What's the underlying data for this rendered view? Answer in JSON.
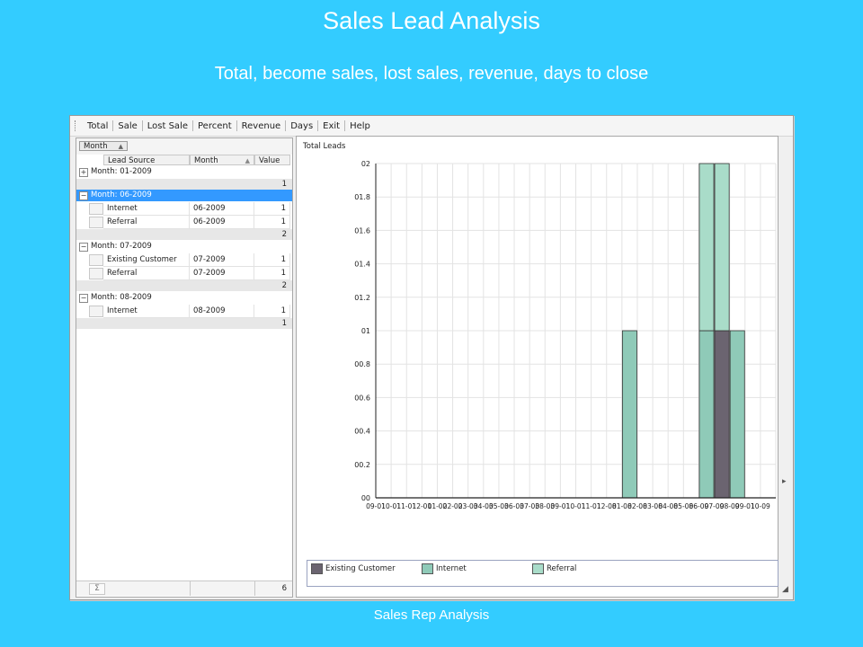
{
  "slide": {
    "title": "Sales Lead Analysis",
    "subtitle": "Total, become sales, lost sales, revenue, days to close",
    "footer": "Sales Rep Analysis"
  },
  "menu": {
    "items": [
      "Total",
      "Sale",
      "Lost Sale",
      "Percent",
      "Revenue",
      "Days",
      "Exit",
      "Help"
    ]
  },
  "grid": {
    "group_chip": "Month",
    "columns": [
      "Lead Source",
      "Month",
      "Value"
    ],
    "groups": [
      {
        "label": "Month:  01-2009",
        "expanded": false,
        "selected": false,
        "rows": [],
        "total": "1"
      },
      {
        "label": "Month:  06-2009",
        "expanded": true,
        "selected": true,
        "rows": [
          {
            "source": "Internet",
            "month": "06-2009",
            "value": "1"
          },
          {
            "source": "Referral",
            "month": "06-2009",
            "value": "1"
          }
        ],
        "total": "2"
      },
      {
        "label": "Month:  07-2009",
        "expanded": true,
        "selected": false,
        "rows": [
          {
            "source": "Existing Customer",
            "month": "07-2009",
            "value": "1"
          },
          {
            "source": "Referral",
            "month": "07-2009",
            "value": "1"
          }
        ],
        "total": "2"
      },
      {
        "label": "Month:  08-2009",
        "expanded": true,
        "selected": false,
        "rows": [
          {
            "source": "Internet",
            "month": "08-2009",
            "value": "1"
          }
        ],
        "total": "1"
      }
    ],
    "expand_symbol": "+",
    "collapse_symbol": "−",
    "sum_symbol": "Σ",
    "grand_total": "6"
  },
  "chart_data": {
    "type": "bar",
    "stacked": true,
    "title": "Total Leads",
    "y_ticks": [
      "00",
      "00.2",
      "00.4",
      "00.6",
      "00.8",
      "01",
      "01.2",
      "01.4",
      "01.6",
      "01.8",
      "02"
    ],
    "ylim": [
      0,
      2
    ],
    "x_tick_labels": [
      "09-01",
      "10-01",
      "11-01",
      "12-01",
      "01-02",
      "02-02",
      "03-03",
      "04-03",
      "05-03",
      "06-03",
      "07-03",
      "08-03",
      "09-01",
      "10-01",
      "11-01",
      "12-08",
      "01-08",
      "02-08",
      "03-08",
      "04-08",
      "05-08",
      "06-09",
      "07-09",
      "08-09",
      "09-01",
      "10-09"
    ],
    "categories": [
      "09-01",
      "10-01",
      "11-01",
      "12-01",
      "01-02",
      "02-02",
      "03-03",
      "04-03",
      "05-03",
      "06-03",
      "07-03",
      "08-03",
      "09-01",
      "10-01",
      "11-01",
      "12-08",
      "01-08",
      "02-08",
      "03-08",
      "04-08",
      "05-08",
      "06-09",
      "07-09",
      "08-09",
      "09-01",
      "10-09"
    ],
    "series": [
      {
        "name": "Existing Customer",
        "color": "#6b6470",
        "values": [
          0,
          0,
          0,
          0,
          0,
          0,
          0,
          0,
          0,
          0,
          0,
          0,
          0,
          0,
          0,
          0,
          0,
          0,
          0,
          0,
          0,
          0,
          1,
          0,
          0,
          0
        ]
      },
      {
        "name": "Internet",
        "color": "#8fcab8",
        "values": [
          0,
          0,
          0,
          0,
          0,
          0,
          0,
          0,
          0,
          0,
          0,
          0,
          0,
          0,
          0,
          0,
          1,
          0,
          0,
          0,
          0,
          1,
          0,
          1,
          0,
          0
        ]
      },
      {
        "name": "Referral",
        "color": "#a9dcc9",
        "values": [
          0,
          0,
          0,
          0,
          0,
          0,
          0,
          0,
          0,
          0,
          0,
          0,
          0,
          0,
          0,
          0,
          0,
          0,
          0,
          0,
          0,
          1,
          1,
          0,
          0,
          0
        ]
      }
    ],
    "grid": true,
    "legend_position": "bottom"
  }
}
